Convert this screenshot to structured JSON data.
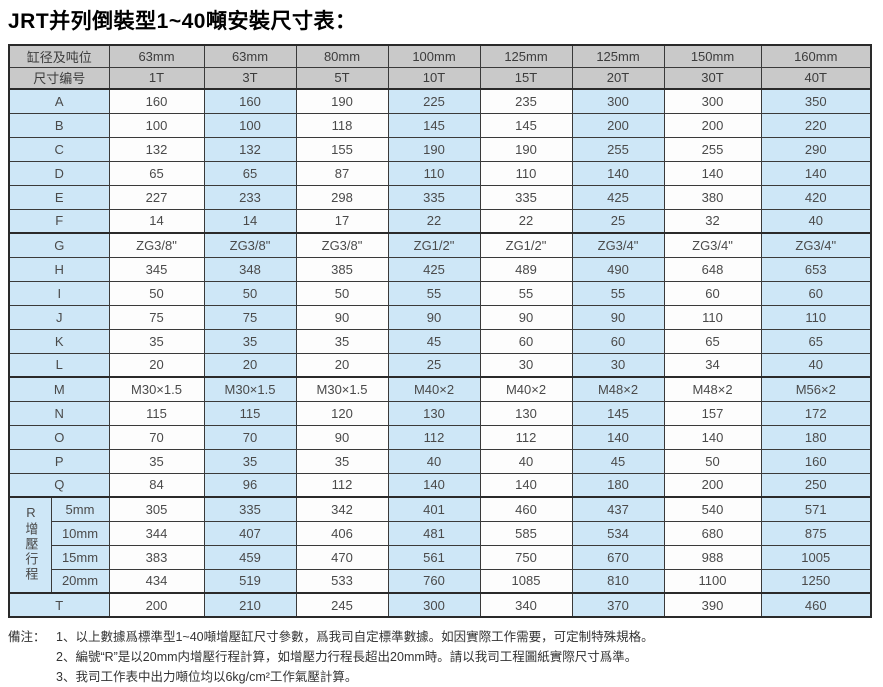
{
  "title": "JRT并列倒裝型1~40噸安裝尺寸表：",
  "colors": {
    "header_bg": "#c9c9c9",
    "highlight_blue": "#cee7f7",
    "cell_white": "#fdfdfd",
    "border": "#2a2a2a"
  },
  "table": {
    "corner_top": "缸径及吨位",
    "corner_bottom": "尺寸编号",
    "columns": [
      {
        "bore": "63mm",
        "ton": "1T"
      },
      {
        "bore": "63mm",
        "ton": "3T"
      },
      {
        "bore": "80mm",
        "ton": "5T"
      },
      {
        "bore": "100mm",
        "ton": "10T"
      },
      {
        "bore": "125mm",
        "ton": "15T"
      },
      {
        "bore": "125mm",
        "ton": "20T"
      },
      {
        "bore": "150mm",
        "ton": "30T"
      },
      {
        "bore": "160mm",
        "ton": "40T"
      }
    ],
    "rows": [
      {
        "label": "A",
        "section_start": false,
        "values": [
          "160",
          "160",
          "190",
          "225",
          "235",
          "300",
          "300",
          "350"
        ]
      },
      {
        "label": "B",
        "section_start": false,
        "values": [
          "100",
          "100",
          "118",
          "145",
          "145",
          "200",
          "200",
          "220"
        ]
      },
      {
        "label": "C",
        "section_start": false,
        "values": [
          "132",
          "132",
          "155",
          "190",
          "190",
          "255",
          "255",
          "290"
        ]
      },
      {
        "label": "D",
        "section_start": false,
        "values": [
          "65",
          "65",
          "87",
          "110",
          "110",
          "140",
          "140",
          "140"
        ]
      },
      {
        "label": "E",
        "section_start": false,
        "values": [
          "227",
          "233",
          "298",
          "335",
          "335",
          "425",
          "380",
          "420"
        ]
      },
      {
        "label": "F",
        "section_start": false,
        "values": [
          "14",
          "14",
          "17",
          "22",
          "22",
          "25",
          "32",
          "40"
        ]
      },
      {
        "label": "G",
        "section_start": true,
        "values": [
          "ZG3/8\"",
          "ZG3/8\"",
          "ZG3/8\"",
          "ZG1/2\"",
          "ZG1/2\"",
          "ZG3/4\"",
          "ZG3/4\"",
          "ZG3/4\""
        ]
      },
      {
        "label": "H",
        "section_start": false,
        "values": [
          "345",
          "348",
          "385",
          "425",
          "489",
          "490",
          "648",
          "653"
        ]
      },
      {
        "label": "I",
        "section_start": false,
        "values": [
          "50",
          "50",
          "50",
          "55",
          "55",
          "55",
          "60",
          "60"
        ]
      },
      {
        "label": "J",
        "section_start": false,
        "values": [
          "75",
          "75",
          "90",
          "90",
          "90",
          "90",
          "110",
          "110"
        ]
      },
      {
        "label": "K",
        "section_start": false,
        "values": [
          "35",
          "35",
          "35",
          "45",
          "60",
          "60",
          "65",
          "65"
        ]
      },
      {
        "label": "L",
        "section_start": false,
        "values": [
          "20",
          "20",
          "20",
          "25",
          "30",
          "30",
          "34",
          "40"
        ]
      },
      {
        "label": "M",
        "section_start": true,
        "values": [
          "M30×1.5",
          "M30×1.5",
          "M30×1.5",
          "M40×2",
          "M40×2",
          "M48×2",
          "M48×2",
          "M56×2"
        ]
      },
      {
        "label": "N",
        "section_start": false,
        "values": [
          "115",
          "115",
          "120",
          "130",
          "130",
          "145",
          "157",
          "172"
        ]
      },
      {
        "label": "O",
        "section_start": false,
        "values": [
          "70",
          "70",
          "90",
          "112",
          "112",
          "140",
          "140",
          "180"
        ]
      },
      {
        "label": "P",
        "section_start": false,
        "values": [
          "35",
          "35",
          "35",
          "40",
          "40",
          "45",
          "50",
          "160"
        ]
      },
      {
        "label": "Q",
        "section_start": false,
        "values": [
          "84",
          "96",
          "112",
          "140",
          "140",
          "180",
          "200",
          "250"
        ]
      }
    ],
    "r_section": {
      "label": "R增壓行程",
      "sub_rows": [
        {
          "label": "5mm",
          "values": [
            "305",
            "335",
            "342",
            "401",
            "460",
            "437",
            "540",
            "571"
          ]
        },
        {
          "label": "10mm",
          "values": [
            "344",
            "407",
            "406",
            "481",
            "585",
            "534",
            "680",
            "875"
          ]
        },
        {
          "label": "15mm",
          "values": [
            "383",
            "459",
            "470",
            "561",
            "750",
            "670",
            "988",
            "1005"
          ]
        },
        {
          "label": "20mm",
          "values": [
            "434",
            "519",
            "533",
            "760",
            "1085",
            "810",
            "1100",
            "1250"
          ]
        }
      ]
    },
    "t_row": {
      "label": "T",
      "values": [
        "200",
        "210",
        "245",
        "300",
        "340",
        "370",
        "390",
        "460"
      ]
    }
  },
  "notes": {
    "prefix": "備注：",
    "items": [
      "1、以上數據爲標準型1~40噸增壓缸尺寸參數，爲我司自定標準數據。如因實際工作需要，可定制特殊規格。",
      "2、編號“R”是以20mm内增壓行程計算，如增壓力行程長超出20mm時。請以我司工程圖紙實際尺寸爲準。",
      "3、我司工作表中出力噸位均以6kg/cm²工作氣壓計算。"
    ]
  }
}
